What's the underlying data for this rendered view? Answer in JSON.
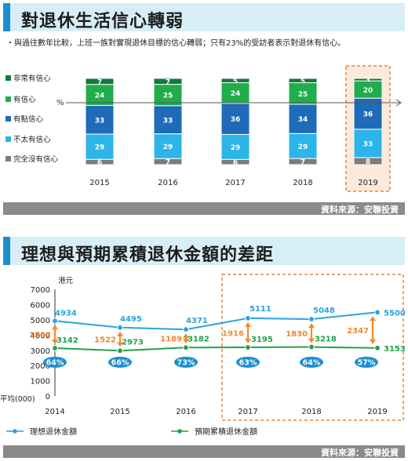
{
  "chart1": {
    "title": "對退休生活信心轉弱",
    "subtitle": "・與過往數年比較，上班一族對實現退休目標的信心轉弱；只有23%的受訪者表示對退休有信心。",
    "source": "資料來源：安聯投資",
    "percent_sign": "%",
    "highlight_color": "#e8873a"
  },
  "chart2": {
    "title": "理想與預期累積退休金額的差距",
    "source": "資料來源：安聯投資",
    "y_unit": "港元",
    "x_axis_note": "平均(000)"
  },
  "chart_data": [
    {
      "type": "bar",
      "stacked": true,
      "categories": [
        "2015",
        "2016",
        "2017",
        "2018",
        "2019"
      ],
      "series": [
        {
          "name": "非常有信心",
          "color": "#137a3c",
          "values": [
            7,
            7,
            5,
            5,
            3
          ]
        },
        {
          "name": "有信心",
          "color": "#20ad4b",
          "values": [
            24,
            25,
            24,
            25,
            20
          ]
        },
        {
          "name": "有點信心",
          "color": "#1e6bb8",
          "values": [
            33,
            33,
            36,
            34,
            36
          ]
        },
        {
          "name": "不太有信心",
          "color": "#2db4e8",
          "values": [
            29,
            29,
            29,
            29,
            33
          ]
        },
        {
          "name": "完全沒有信心",
          "color": "#7b7b7b",
          "values": [
            6,
            7,
            6,
            7,
            8
          ]
        }
      ],
      "highlight_category": "2019"
    },
    {
      "type": "line",
      "x": [
        "2014",
        "2015",
        "2016",
        "2017",
        "2018",
        "2019"
      ],
      "ylim": [
        0,
        7000
      ],
      "yticks": [
        0,
        1000,
        2000,
        3000,
        4000,
        5000,
        6000,
        7000
      ],
      "series": [
        {
          "name": "理想退休金額",
          "color": "#2aa3de",
          "values": [
            4934,
            4495,
            4371,
            5111,
            5048,
            5500
          ]
        },
        {
          "name": "預期累積退休金額",
          "color": "#22a24a",
          "values": [
            3142,
            2973,
            3182,
            3195,
            3218,
            3153
          ]
        }
      ],
      "gaps": [
        1792,
        1522,
        1189,
        1916,
        1830,
        2347
      ],
      "ratios": [
        "64%",
        "66%",
        "73%",
        "63%",
        "64%",
        "57%"
      ],
      "gap_color": "#f08a2c",
      "ratio_color": "#1a8fd0",
      "highlight_range": [
        "2017",
        "2019"
      ]
    }
  ]
}
